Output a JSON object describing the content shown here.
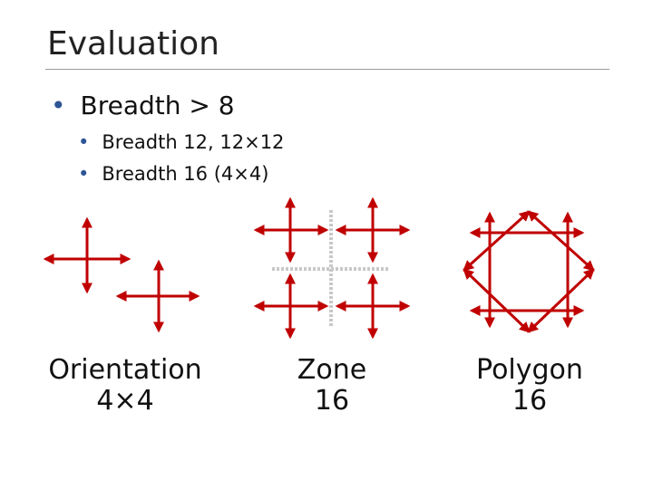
{
  "slide": {
    "title": "Evaluation",
    "bullets": [
      {
        "text": "Breadth > 8"
      }
    ],
    "sub_bullets": [
      {
        "text": "Breadth 12, 12×12"
      },
      {
        "text": "Breadth 16 (4×4)"
      }
    ],
    "figures": [
      {
        "label_line1": "Orientation",
        "label_line2": "4×4"
      },
      {
        "label_line1": "Zone",
        "label_line2": "16"
      },
      {
        "label_line1": "Polygon",
        "label_line2": "16"
      }
    ],
    "colors": {
      "arrow": "#c00000",
      "zone_divider": "#c8c8c8",
      "bullet": "#2f5597"
    }
  }
}
